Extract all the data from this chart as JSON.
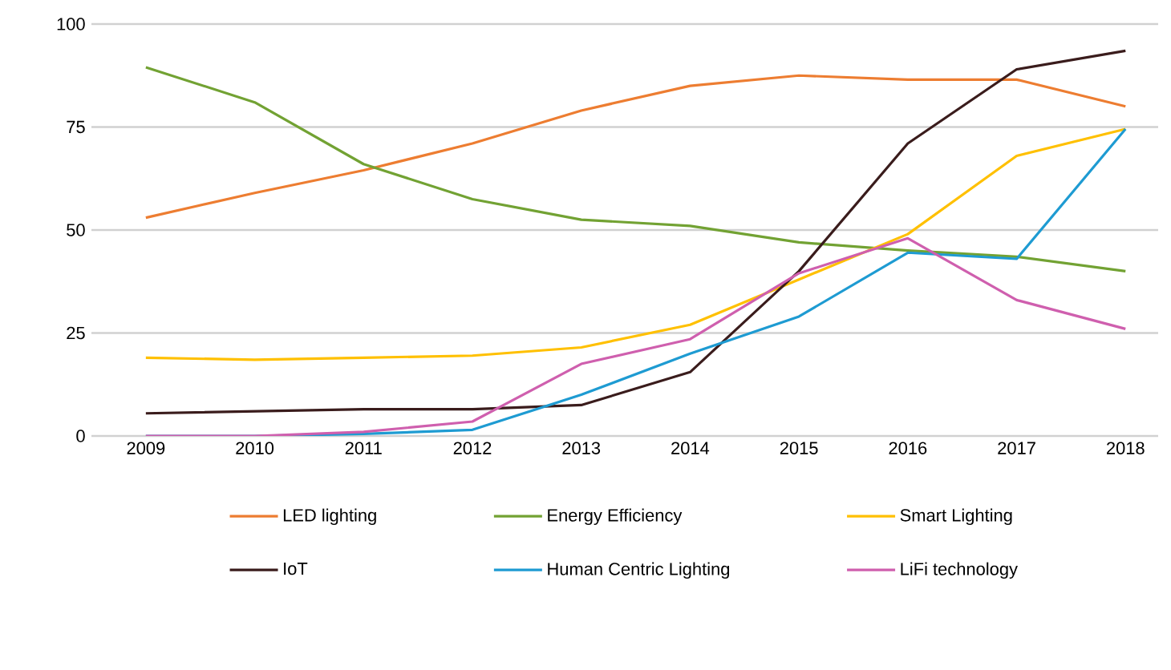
{
  "chart_data": {
    "type": "line",
    "x": [
      2009,
      2010,
      2011,
      2012,
      2013,
      2014,
      2015,
      2016,
      2017,
      2018
    ],
    "xlim": [
      2008.5,
      2018.3
    ],
    "xticks": [
      2009,
      2010,
      2011,
      2012,
      2013,
      2014,
      2015,
      2016,
      2017,
      2018
    ],
    "ylim": [
      0,
      100
    ],
    "yticks": [
      0,
      25,
      50,
      75,
      100
    ],
    "grid": "y",
    "legend": "bottom",
    "marker": "none",
    "line_style": "solid",
    "series": [
      {
        "name": "LED lighting",
        "color": "#ed7d31",
        "values": [
          53,
          59,
          64.5,
          71,
          79,
          85,
          87.5,
          86.5,
          86.5,
          80
        ]
      },
      {
        "name": "Energy Efficiency",
        "color": "#72a233",
        "values": [
          89.5,
          81,
          66,
          57.5,
          52.5,
          51,
          47,
          45,
          43.5,
          40
        ]
      },
      {
        "name": "Smart Lighting",
        "color": "#ffc000",
        "values": [
          19,
          18.5,
          19,
          19.5,
          21.5,
          27,
          38,
          49,
          68,
          74.5
        ]
      },
      {
        "name": "IoT",
        "color": "#3a1c1c",
        "values": [
          5.5,
          6,
          6.5,
          6.5,
          7.5,
          15.5,
          40,
          71,
          89,
          93.5
        ]
      },
      {
        "name": "Human Centric Lighting",
        "color": "#1e9bd2",
        "values": [
          0,
          0,
          0.5,
          1.5,
          10,
          20,
          29,
          44.5,
          43,
          74.5
        ]
      },
      {
        "name": "LiFi technology",
        "color": "#cf5fae",
        "values": [
          0,
          0,
          1,
          3.5,
          17.5,
          23.5,
          39.5,
          48,
          33,
          26
        ]
      }
    ]
  }
}
